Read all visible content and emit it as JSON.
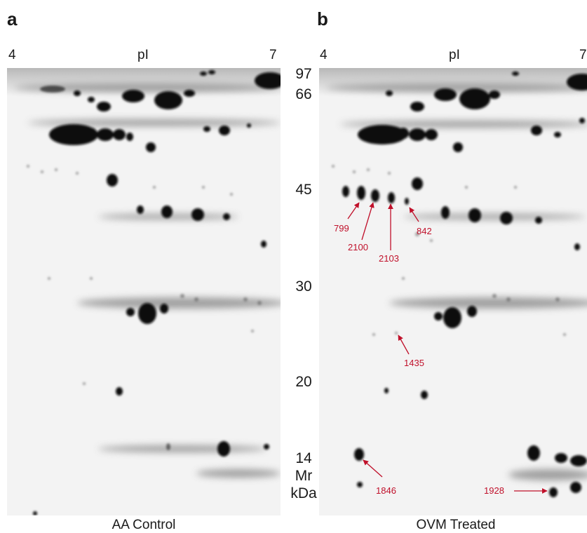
{
  "panels": [
    {
      "letter": "a",
      "ph_left": "4",
      "ph_center": "pI",
      "ph_right": "7",
      "caption": "AA Control"
    },
    {
      "letter": "b",
      "ph_left": "4",
      "ph_center": "pI",
      "ph_right": "7",
      "caption": "OVM Treated"
    }
  ],
  "mw_markers": [
    "97",
    "66",
    "45",
    "30",
    "20",
    "14"
  ],
  "mw_axis_label_line1": "Mr",
  "mw_axis_label_line2": "kDa",
  "spot_labels": [
    "799",
    "2100",
    "2103",
    "842",
    "1435",
    "1846",
    "1928"
  ],
  "colors": {
    "annotation": "#c0102a",
    "gel_background": "#f3f3f3",
    "spot": "#0a0a0a"
  }
}
